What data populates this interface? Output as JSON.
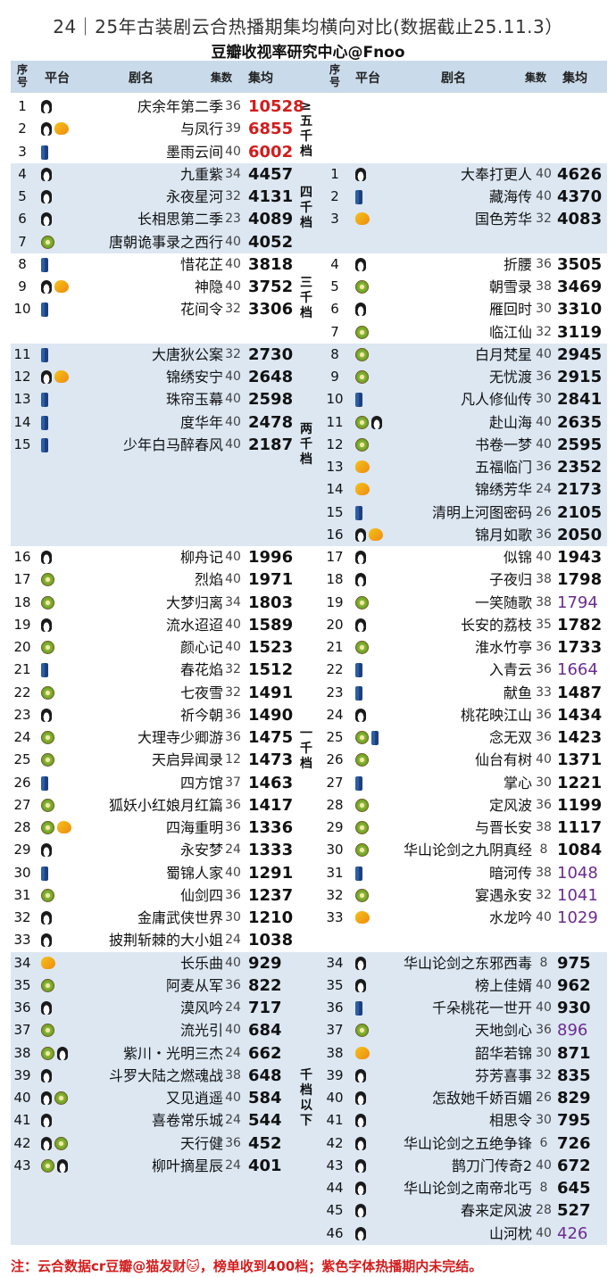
{
  "title": "24｜25年古装剧云合热播期集均横向对比(数据截止25.11.3）",
  "subtitle": "豆瓣收视率研究中心@Fnoo",
  "headers": {
    "seq": "序号",
    "platform": "平台",
    "name": "剧名",
    "episodes": "集数",
    "avg": "集均"
  },
  "colors": {
    "red": "#d21d1d",
    "purple": "#6b2c8f",
    "band": "#dce7f2",
    "header": "#c9daea"
  },
  "platform_icons": {
    "p": "penguin-icon",
    "k": "kiwi-icon",
    "m": "mango-icon",
    "j": "jeans-icon"
  },
  "tiers": [
    {
      "label": "≥五千档"
    },
    {
      "label": "四千档"
    },
    {
      "label": "三千档"
    },
    {
      "label": "两千档"
    },
    {
      "label": "一千档"
    },
    {
      "label": "千档以下"
    }
  ],
  "left": [
    {
      "no": "1",
      "plat": [
        "p"
      ],
      "name": "庆余年第二季",
      "ep": "36",
      "avg": "10528",
      "color": "red"
    },
    {
      "no": "2",
      "plat": [
        "p",
        "m"
      ],
      "name": "与凤行",
      "ep": "39",
      "avg": "6855",
      "color": "red"
    },
    {
      "no": "3",
      "plat": [
        "j"
      ],
      "name": "墨雨云间",
      "ep": "40",
      "avg": "6002",
      "color": "red"
    },
    {
      "no": "4",
      "plat": [
        "p"
      ],
      "name": "九重紫",
      "ep": "34",
      "avg": "4457"
    },
    {
      "no": "5",
      "plat": [
        "p"
      ],
      "name": "永夜星河",
      "ep": "32",
      "avg": "4131"
    },
    {
      "no": "6",
      "plat": [
        "p"
      ],
      "name": "长相思第二季",
      "ep": "23",
      "avg": "4089"
    },
    {
      "no": "7",
      "plat": [
        "k"
      ],
      "name": "唐朝诡事录之西行",
      "ep": "40",
      "avg": "4052"
    },
    {
      "no": "8",
      "plat": [
        "j"
      ],
      "name": "惜花芷",
      "ep": "40",
      "avg": "3818"
    },
    {
      "no": "9",
      "plat": [
        "p",
        "m"
      ],
      "name": "神隐",
      "ep": "40",
      "avg": "3752"
    },
    {
      "no": "10",
      "plat": [
        "j"
      ],
      "name": "花间令",
      "ep": "32",
      "avg": "3306"
    },
    {
      "no": "11",
      "plat": [
        "j"
      ],
      "name": "大唐狄公案",
      "ep": "32",
      "avg": "2730"
    },
    {
      "no": "12",
      "plat": [
        "p",
        "m"
      ],
      "name": "锦绣安宁",
      "ep": "40",
      "avg": "2648"
    },
    {
      "no": "13",
      "plat": [
        "j"
      ],
      "name": "珠帘玉幕",
      "ep": "40",
      "avg": "2598"
    },
    {
      "no": "14",
      "plat": [
        "j"
      ],
      "name": "度华年",
      "ep": "40",
      "avg": "2478"
    },
    {
      "no": "15",
      "plat": [
        "j"
      ],
      "name": "少年白马醉春风",
      "ep": "40",
      "avg": "2187"
    },
    {
      "no": "16",
      "plat": [
        "p"
      ],
      "name": "柳舟记",
      "ep": "40",
      "avg": "1996"
    },
    {
      "no": "17",
      "plat": [
        "k"
      ],
      "name": "烈焰",
      "ep": "40",
      "avg": "1971"
    },
    {
      "no": "18",
      "plat": [
        "k"
      ],
      "name": "大梦归离",
      "ep": "34",
      "avg": "1803"
    },
    {
      "no": "19",
      "plat": [
        "p"
      ],
      "name": "流水迢迢",
      "ep": "40",
      "avg": "1589"
    },
    {
      "no": "20",
      "plat": [
        "k"
      ],
      "name": "颜心记",
      "ep": "40",
      "avg": "1523"
    },
    {
      "no": "21",
      "plat": [
        "j"
      ],
      "name": "春花焰",
      "ep": "32",
      "avg": "1512"
    },
    {
      "no": "22",
      "plat": [
        "k"
      ],
      "name": "七夜雪",
      "ep": "32",
      "avg": "1491"
    },
    {
      "no": "23",
      "plat": [
        "p"
      ],
      "name": "祈今朝",
      "ep": "36",
      "avg": "1490"
    },
    {
      "no": "24",
      "plat": [
        "k"
      ],
      "name": "大理寺少卿游",
      "ep": "36",
      "avg": "1475"
    },
    {
      "no": "25",
      "plat": [
        "k"
      ],
      "name": "天启异闻录",
      "ep": "12",
      "avg": "1473"
    },
    {
      "no": "26",
      "plat": [
        "j"
      ],
      "name": "四方馆",
      "ep": "37",
      "avg": "1463"
    },
    {
      "no": "27",
      "plat": [
        "k"
      ],
      "name": "狐妖小红娘月红篇",
      "ep": "36",
      "avg": "1417"
    },
    {
      "no": "28",
      "plat": [
        "k",
        "m"
      ],
      "name": "四海重明",
      "ep": "36",
      "avg": "1336"
    },
    {
      "no": "29",
      "plat": [
        "p"
      ],
      "name": "永安梦",
      "ep": "24",
      "avg": "1333"
    },
    {
      "no": "30",
      "plat": [
        "j"
      ],
      "name": "蜀锦人家",
      "ep": "40",
      "avg": "1291"
    },
    {
      "no": "31",
      "plat": [
        "k"
      ],
      "name": "仙剑四",
      "ep": "36",
      "avg": "1237"
    },
    {
      "no": "32",
      "plat": [
        "p"
      ],
      "name": "金庸武侠世界",
      "ep": "30",
      "avg": "1210"
    },
    {
      "no": "33",
      "plat": [
        "p"
      ],
      "name": "披荆斩棘的大小姐",
      "ep": "24",
      "avg": "1038"
    },
    {
      "no": "34",
      "plat": [
        "m"
      ],
      "name": "长乐曲",
      "ep": "40",
      "avg": "929"
    },
    {
      "no": "35",
      "plat": [
        "k"
      ],
      "name": "阿麦从军",
      "ep": "36",
      "avg": "822"
    },
    {
      "no": "36",
      "plat": [
        "p"
      ],
      "name": "漠风吟",
      "ep": "24",
      "avg": "717"
    },
    {
      "no": "37",
      "plat": [
        "k"
      ],
      "name": "流光引",
      "ep": "40",
      "avg": "684"
    },
    {
      "no": "38",
      "plat": [
        "k",
        "p"
      ],
      "name": "紫川・光明三杰",
      "ep": "24",
      "avg": "662"
    },
    {
      "no": "39",
      "plat": [
        "p"
      ],
      "name": "斗罗大陆之燃魂战",
      "ep": "38",
      "avg": "648"
    },
    {
      "no": "40",
      "plat": [
        "p",
        "k"
      ],
      "name": "又见逍遥",
      "ep": "40",
      "avg": "584"
    },
    {
      "no": "41",
      "plat": [
        "p"
      ],
      "name": "喜卷常乐城",
      "ep": "24",
      "avg": "544"
    },
    {
      "no": "42",
      "plat": [
        "p",
        "k"
      ],
      "name": "天行健",
      "ep": "36",
      "avg": "452"
    },
    {
      "no": "43",
      "plat": [
        "k",
        "p"
      ],
      "name": "柳叶摘星辰",
      "ep": "24",
      "avg": "401"
    }
  ],
  "right": [
    {
      "no": "1",
      "plat": [
        "p"
      ],
      "name": "大奉打更人",
      "ep": "40",
      "avg": "4626"
    },
    {
      "no": "2",
      "plat": [
        "j"
      ],
      "name": "藏海传",
      "ep": "40",
      "avg": "4370"
    },
    {
      "no": "3",
      "plat": [
        "m"
      ],
      "name": "国色芳华",
      "ep": "32",
      "avg": "4083"
    },
    {
      "no": "4",
      "plat": [
        "p"
      ],
      "name": "折腰",
      "ep": "36",
      "avg": "3505"
    },
    {
      "no": "5",
      "plat": [
        "k"
      ],
      "name": "朝雪录",
      "ep": "38",
      "avg": "3469"
    },
    {
      "no": "6",
      "plat": [
        "p"
      ],
      "name": "雁回时",
      "ep": "30",
      "avg": "3310"
    },
    {
      "no": "7",
      "plat": [
        "k"
      ],
      "name": "临江仙",
      "ep": "32",
      "avg": "3119"
    },
    {
      "no": "8",
      "plat": [
        "k"
      ],
      "name": "白月梵星",
      "ep": "40",
      "avg": "2945"
    },
    {
      "no": "9",
      "plat": [
        "k"
      ],
      "name": "无忧渡",
      "ep": "36",
      "avg": "2915"
    },
    {
      "no": "10",
      "plat": [
        "j"
      ],
      "name": "凡人修仙传",
      "ep": "30",
      "avg": "2841"
    },
    {
      "no": "11",
      "plat": [
        "k",
        "p"
      ],
      "name": "赴山海",
      "ep": "40",
      "avg": "2635"
    },
    {
      "no": "12",
      "plat": [
        "k"
      ],
      "name": "书卷一梦",
      "ep": "40",
      "avg": "2595"
    },
    {
      "no": "13",
      "plat": [
        "m"
      ],
      "name": "五福临门",
      "ep": "36",
      "avg": "2352"
    },
    {
      "no": "14",
      "plat": [
        "m"
      ],
      "name": "锦绣芳华",
      "ep": "24",
      "avg": "2173"
    },
    {
      "no": "15",
      "plat": [
        "j"
      ],
      "name": "清明上河图密码",
      "ep": "26",
      "avg": "2105"
    },
    {
      "no": "16",
      "plat": [
        "p",
        "m"
      ],
      "name": "锦月如歌",
      "ep": "36",
      "avg": "2050"
    },
    {
      "no": "17",
      "plat": [
        "p"
      ],
      "name": "似锦",
      "ep": "40",
      "avg": "1943"
    },
    {
      "no": "18",
      "plat": [
        "p"
      ],
      "name": "子夜归",
      "ep": "38",
      "avg": "1798"
    },
    {
      "no": "19",
      "plat": [
        "k"
      ],
      "name": "一笑随歌",
      "ep": "38",
      "avg": "1794",
      "color": "purple"
    },
    {
      "no": "20",
      "plat": [
        "p"
      ],
      "name": "长安的荔枝",
      "ep": "35",
      "avg": "1782"
    },
    {
      "no": "21",
      "plat": [
        "k"
      ],
      "name": "淮水竹亭",
      "ep": "36",
      "avg": "1733"
    },
    {
      "no": "22",
      "plat": [
        "j"
      ],
      "name": "入青云",
      "ep": "36",
      "avg": "1664",
      "color": "purple"
    },
    {
      "no": "23",
      "plat": [
        "j"
      ],
      "name": "献鱼",
      "ep": "33",
      "avg": "1487"
    },
    {
      "no": "24",
      "plat": [
        "p"
      ],
      "name": "桃花映江山",
      "ep": "36",
      "avg": "1434"
    },
    {
      "no": "25",
      "plat": [
        "k",
        "j"
      ],
      "name": "念无双",
      "ep": "36",
      "avg": "1423"
    },
    {
      "no": "26",
      "plat": [
        "k"
      ],
      "name": "仙台有树",
      "ep": "40",
      "avg": "1371"
    },
    {
      "no": "27",
      "plat": [
        "j"
      ],
      "name": "掌心",
      "ep": "30",
      "avg": "1221"
    },
    {
      "no": "28",
      "plat": [
        "k"
      ],
      "name": "定风波",
      "ep": "36",
      "avg": "1199"
    },
    {
      "no": "29",
      "plat": [
        "k"
      ],
      "name": "与晋长安",
      "ep": "38",
      "avg": "1117"
    },
    {
      "no": "30",
      "plat": [
        "k"
      ],
      "name": "华山论剑之九阴真经",
      "ep": "8",
      "avg": "1084"
    },
    {
      "no": "31",
      "plat": [
        "j"
      ],
      "name": "暗河传",
      "ep": "38",
      "avg": "1048",
      "color": "purple"
    },
    {
      "no": "32",
      "plat": [
        "k"
      ],
      "name": "宴遇永安",
      "ep": "32",
      "avg": "1041",
      "color": "purple"
    },
    {
      "no": "33",
      "plat": [
        "m"
      ],
      "name": "水龙吟",
      "ep": "40",
      "avg": "1029",
      "color": "purple"
    },
    {
      "no": "34",
      "plat": [
        "p"
      ],
      "name": "华山论剑之东邪西毒",
      "ep": "8",
      "avg": "975"
    },
    {
      "no": "35",
      "plat": [
        "p"
      ],
      "name": "榜上佳婿",
      "ep": "40",
      "avg": "962"
    },
    {
      "no": "36",
      "plat": [
        "j"
      ],
      "name": "千朵桃花一世开",
      "ep": "40",
      "avg": "930"
    },
    {
      "no": "37",
      "plat": [
        "k"
      ],
      "name": "天地剑心",
      "ep": "36",
      "avg": "896",
      "color": "purple"
    },
    {
      "no": "38",
      "plat": [
        "m"
      ],
      "name": "韶华若锦",
      "ep": "30",
      "avg": "871"
    },
    {
      "no": "39",
      "plat": [
        "p"
      ],
      "name": "芬芳喜事",
      "ep": "32",
      "avg": "835"
    },
    {
      "no": "40",
      "plat": [
        "p"
      ],
      "name": "怎敌她千娇百媚",
      "ep": "26",
      "avg": "829"
    },
    {
      "no": "41",
      "plat": [
        "p"
      ],
      "name": "相思令",
      "ep": "30",
      "avg": "795"
    },
    {
      "no": "42",
      "plat": [
        "p"
      ],
      "name": "华山论剑之五绝争锋",
      "ep": "6",
      "avg": "726"
    },
    {
      "no": "43",
      "plat": [
        "p"
      ],
      "name": "鹊刀门传奇2",
      "ep": "40",
      "avg": "672"
    },
    {
      "no": "44",
      "plat": [
        "p"
      ],
      "name": "华山论剑之南帝北丐",
      "ep": "8",
      "avg": "645"
    },
    {
      "no": "45",
      "plat": [
        "p"
      ],
      "name": "春来定风波",
      "ep": "28",
      "avg": "527"
    },
    {
      "no": "46",
      "plat": [
        "p"
      ],
      "name": "山河枕",
      "ep": "40",
      "avg": "426",
      "color": "purple"
    }
  ],
  "note": "注：云合数据cr豆瓣@猫发财🐱，榜单收到400档；紫色字体热播期内未完结。"
}
